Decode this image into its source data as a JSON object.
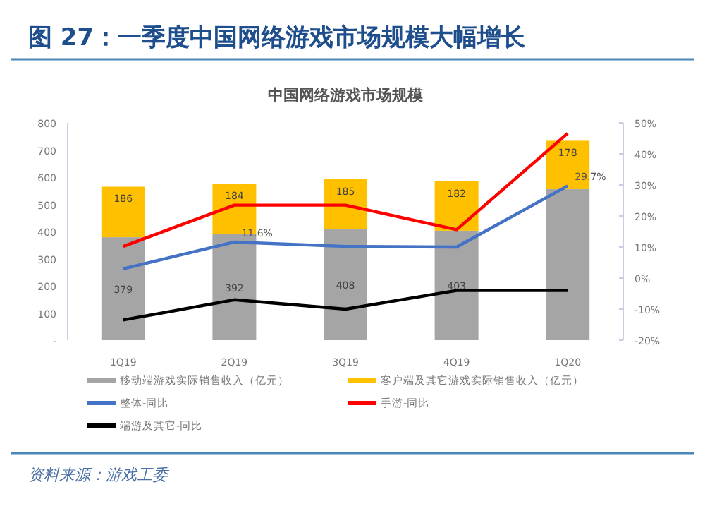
{
  "chart_data": {
    "type": "bar",
    "title": "图 27：一季度中国网络游戏市场规模大幅增长",
    "subtitle": "中国网络游戏市场规模",
    "annotations": [
      "资料来源：游戏工委"
    ],
    "categories": [
      "1Q19",
      "2Q19",
      "3Q19",
      "4Q19",
      "1Q20"
    ],
    "stacked": true,
    "series": [
      {
        "name": "移动端游戏实际销售收入（亿元）",
        "color": "#a5a5a5",
        "values": [
          379,
          392,
          408,
          403,
          556
        ],
        "value_labels": [
          "379",
          "392",
          "408",
          "403",
          null
        ]
      },
      {
        "name": "客户端及其它游戏实际销售收入（亿元）",
        "color": "#ffc000",
        "values": [
          186,
          184,
          185,
          182,
          178
        ],
        "value_labels": [
          "186",
          "184",
          "185",
          "182",
          "178"
        ]
      },
      {
        "name": "整体-同比",
        "type": "line",
        "axis": "y2",
        "color": "#4472c4",
        "values": [
          3,
          11.6,
          10.2,
          10,
          29.7
        ],
        "value_labels": [
          null,
          "11.6%",
          null,
          null,
          "29.7%"
        ]
      },
      {
        "name": "手游-同比",
        "type": "line",
        "axis": "y2",
        "color": "#ff0000",
        "values": [
          10.2,
          23.5,
          23.5,
          15.6,
          46.6
        ]
      },
      {
        "name": "端游及其它-同比",
        "type": "line",
        "axis": "y2",
        "color": "#000000",
        "values": [
          -13.5,
          -7,
          -10,
          -4,
          -4
        ]
      }
    ],
    "ylim": [
      0,
      800
    ],
    "yticks": [
      {
        "value": 0,
        "label": "-"
      },
      100,
      200,
      300,
      400,
      500,
      600,
      700,
      800
    ],
    "y2lim": [
      -20,
      50
    ],
    "y2ticks": [
      {
        "value": -20,
        "label": "-20%"
      },
      {
        "value": -10,
        "label": "-10%"
      },
      {
        "value": 0,
        "label": "0%"
      },
      {
        "value": 10,
        "label": "10%"
      },
      {
        "value": 20,
        "label": "20%"
      },
      {
        "value": 30,
        "label": "30%"
      },
      {
        "value": 40,
        "label": "40%"
      },
      {
        "value": 50,
        "label": "50%"
      }
    ],
    "legend": "bottom",
    "marker": "none",
    "line_style": "solid"
  }
}
